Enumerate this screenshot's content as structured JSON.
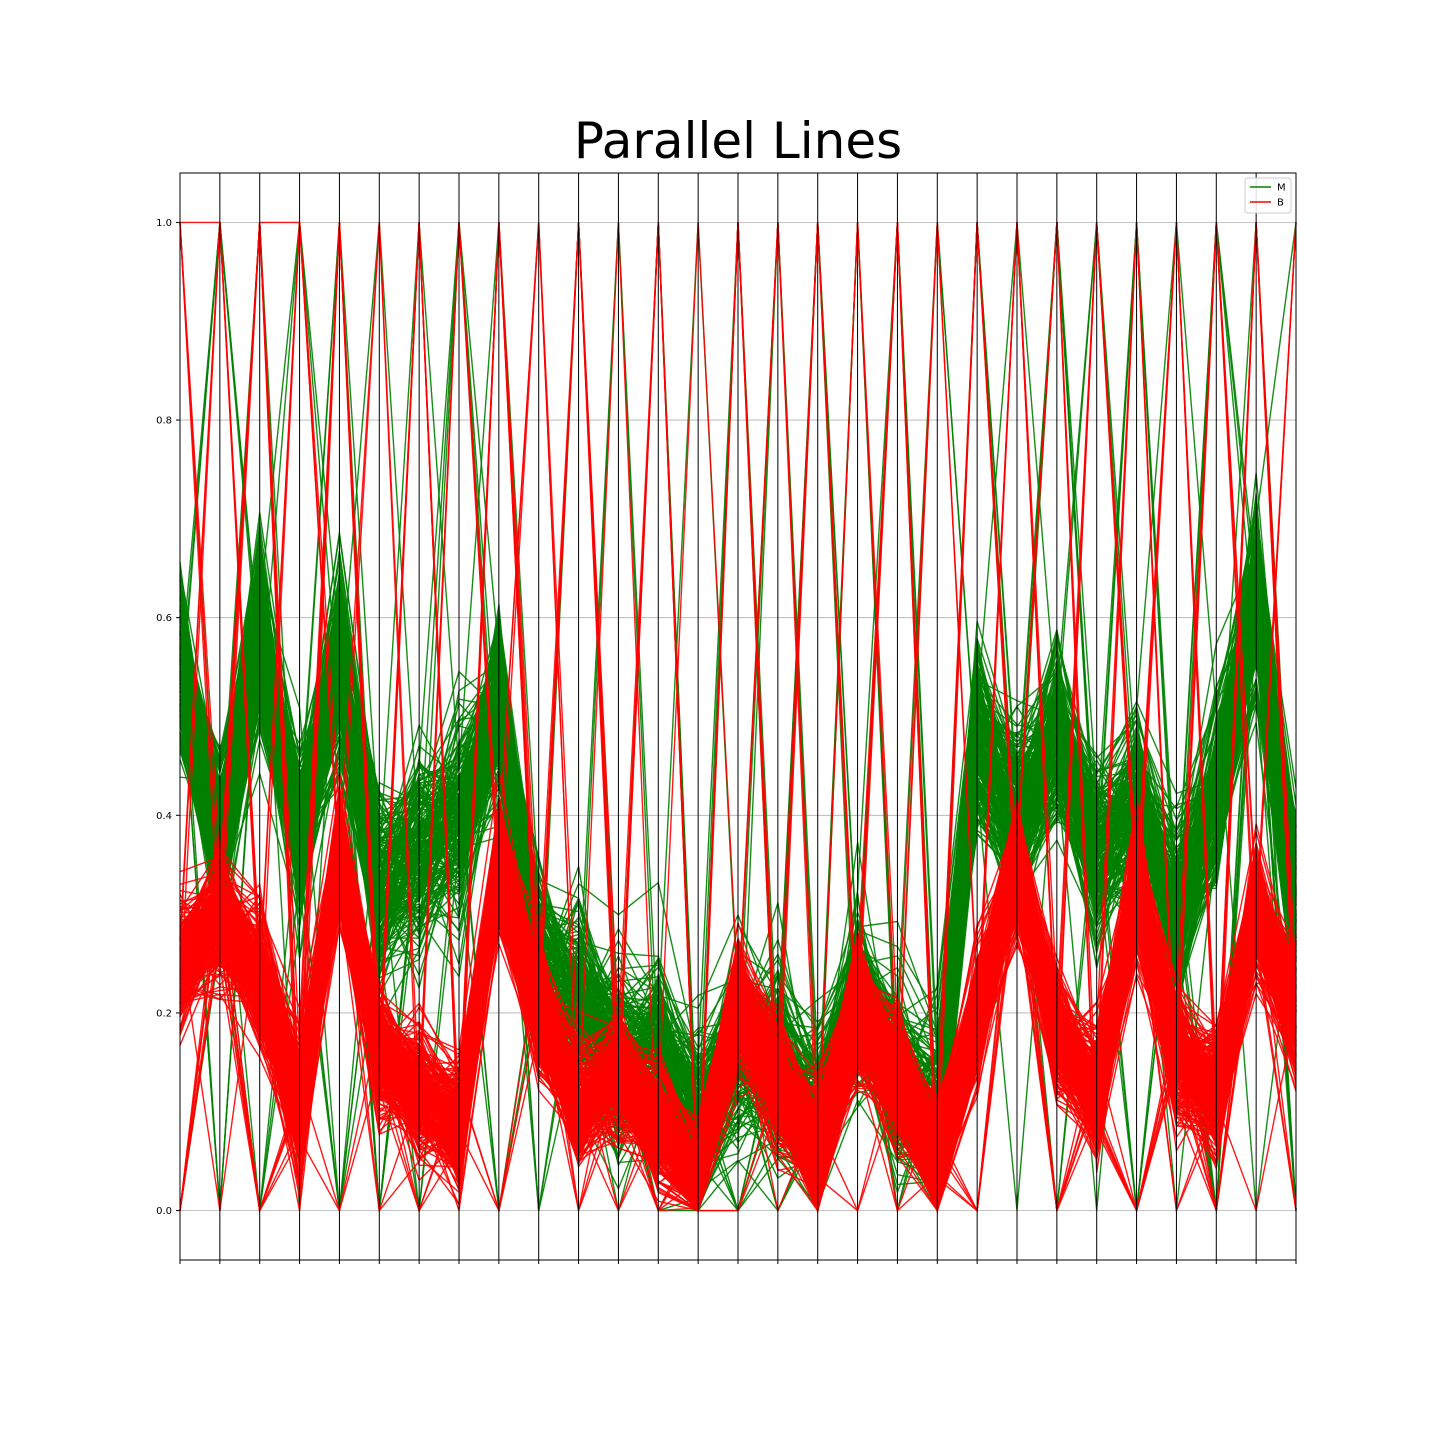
{
  "chart_data": {
    "type": "line",
    "subtype": "parallel-coordinates",
    "title": "Parallel Lines",
    "xlabel": "",
    "ylabel": "",
    "ylim": [
      -0.05,
      1.05
    ],
    "yticks": [
      "0.0",
      "0.2",
      "0.4",
      "0.6",
      "0.8",
      "1.0"
    ],
    "n_axes": 29,
    "grid": true,
    "legend_position": "top-right",
    "series": [
      {
        "name": "M",
        "color": "#008000",
        "representative_profile": [
          0.55,
          0.37,
          0.58,
          0.38,
          0.55,
          0.33,
          0.36,
          0.4,
          0.5,
          0.25,
          0.21,
          0.16,
          0.16,
          0.08,
          0.17,
          0.15,
          0.09,
          0.22,
          0.14,
          0.1,
          0.48,
          0.4,
          0.48,
          0.37,
          0.41,
          0.3,
          0.42,
          0.62,
          0.3
        ]
      },
      {
        "name": "B",
        "color": "#ff0000",
        "representative_profile": [
          0.25,
          0.3,
          0.24,
          0.11,
          0.36,
          0.16,
          0.12,
          0.09,
          0.35,
          0.21,
          0.11,
          0.14,
          0.09,
          0.03,
          0.21,
          0.13,
          0.06,
          0.2,
          0.14,
          0.05,
          0.2,
          0.35,
          0.18,
          0.12,
          0.33,
          0.16,
          0.12,
          0.31,
          0.2
        ]
      }
    ]
  }
}
